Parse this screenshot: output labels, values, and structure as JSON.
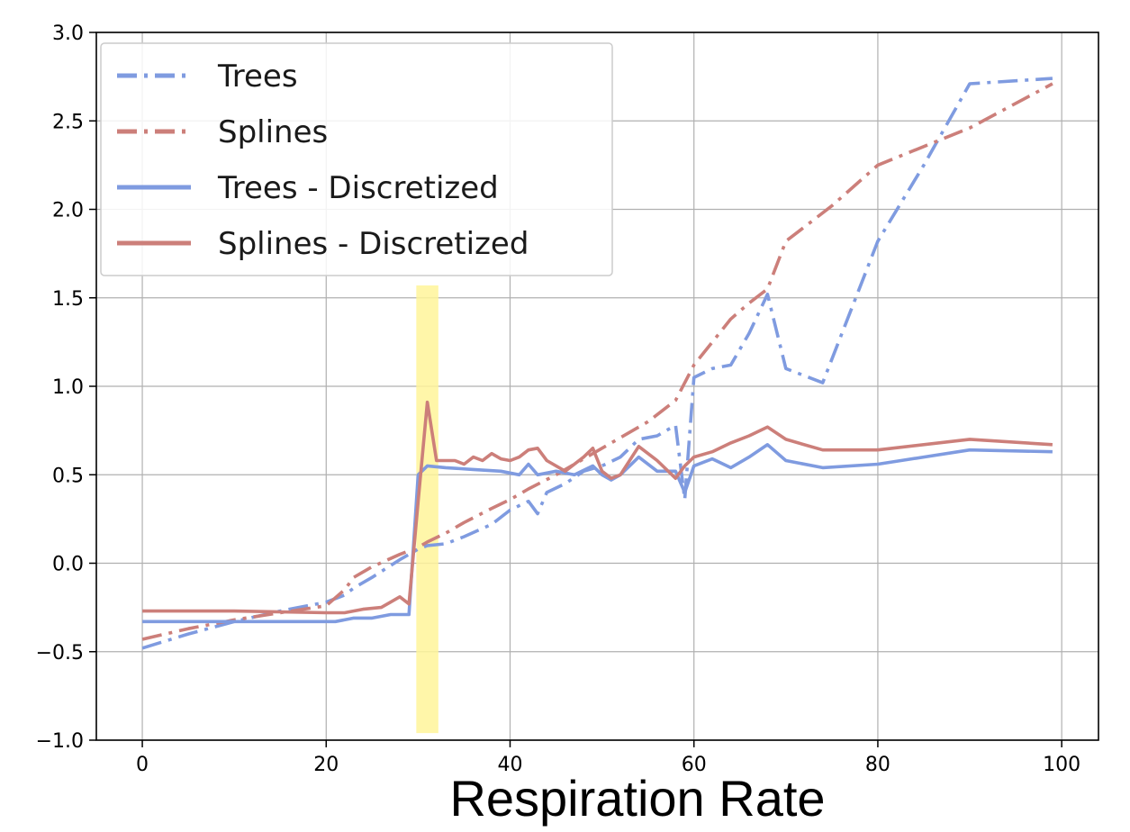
{
  "chart_data": {
    "type": "line",
    "title": "",
    "xlabel": "Respiration Rate",
    "ylabel": "",
    "xlim": [
      -5,
      104
    ],
    "ylim": [
      -1.0,
      3.0
    ],
    "xticks": [
      0,
      20,
      40,
      60,
      80,
      100
    ],
    "yticks": [
      -1.0,
      -0.5,
      0.0,
      0.5,
      1.0,
      1.5,
      2.0,
      2.5,
      3.0
    ],
    "xtick_labels": [
      "0",
      "20",
      "40",
      "60",
      "80",
      "100"
    ],
    "ytick_labels": [
      "−1.0",
      "−0.5",
      "0.0",
      "0.5",
      "1.0",
      "1.5",
      "2.0",
      "2.5",
      "3.0"
    ],
    "grid": true,
    "legend_position": "top-left",
    "highlight_band": {
      "x_start": 29.8,
      "x_end": 32.2,
      "y_start": -0.96,
      "y_end": 1.57,
      "color": "#fff59a"
    },
    "series": [
      {
        "name": "Trees",
        "style": "dashdot",
        "color": "#7f9be0",
        "x": [
          0,
          5,
          10,
          15,
          20,
          22,
          23,
          25,
          28,
          30,
          31,
          33,
          35,
          38,
          40,
          42,
          43,
          44,
          46,
          48,
          50,
          52,
          54,
          56,
          58,
          59,
          60,
          62,
          64,
          66,
          68,
          70,
          74,
          80,
          85,
          90,
          99
        ],
        "y": [
          -0.48,
          -0.4,
          -0.33,
          -0.27,
          -0.22,
          -0.18,
          -0.14,
          -0.08,
          0.02,
          0.08,
          0.1,
          0.11,
          0.15,
          0.22,
          0.3,
          0.35,
          0.28,
          0.4,
          0.45,
          0.52,
          0.55,
          0.6,
          0.7,
          0.72,
          0.78,
          0.36,
          1.05,
          1.1,
          1.12,
          1.3,
          1.52,
          1.1,
          1.02,
          1.82,
          2.25,
          2.71,
          2.74
        ]
      },
      {
        "name": "Splines",
        "style": "dashdot",
        "color": "#cc7f7a",
        "x": [
          0,
          5,
          10,
          15,
          20,
          22,
          23,
          25,
          28,
          30,
          31,
          33,
          35,
          38,
          40,
          42,
          45,
          48,
          50,
          52,
          55,
          58,
          60,
          62,
          64,
          66,
          68,
          70,
          75,
          80,
          90,
          99
        ],
        "y": [
          -0.43,
          -0.37,
          -0.32,
          -0.28,
          -0.24,
          -0.15,
          -0.08,
          -0.02,
          0.05,
          0.09,
          0.12,
          0.17,
          0.23,
          0.31,
          0.36,
          0.42,
          0.5,
          0.59,
          0.65,
          0.71,
          0.8,
          0.92,
          1.12,
          1.25,
          1.38,
          1.47,
          1.55,
          1.82,
          2.02,
          2.25,
          2.46,
          2.71
        ]
      },
      {
        "name": "Trees - Discretized",
        "style": "solid",
        "color": "#7f9be0",
        "x": [
          0,
          10,
          21,
          23,
          25,
          27,
          29,
          30,
          31,
          33,
          36,
          39,
          41,
          42,
          43,
          45,
          47,
          49,
          50,
          51,
          52,
          54,
          56,
          58,
          59,
          60,
          62,
          64,
          66,
          68,
          70,
          74,
          80,
          90,
          99
        ],
        "y": [
          -0.33,
          -0.33,
          -0.33,
          -0.31,
          -0.31,
          -0.29,
          -0.29,
          0.5,
          0.55,
          0.54,
          0.53,
          0.52,
          0.5,
          0.56,
          0.5,
          0.52,
          0.5,
          0.55,
          0.5,
          0.47,
          0.5,
          0.6,
          0.52,
          0.52,
          0.4,
          0.55,
          0.59,
          0.54,
          0.6,
          0.67,
          0.58,
          0.54,
          0.56,
          0.64,
          0.63
        ]
      },
      {
        "name": "Splines - Discretized",
        "style": "solid",
        "color": "#cc7f7a",
        "x": [
          0,
          10,
          20,
          22,
          24,
          26,
          27,
          28,
          29,
          30,
          31,
          32,
          34,
          35,
          36,
          37,
          38,
          39,
          40,
          41,
          42,
          43,
          44,
          46,
          48,
          49,
          50,
          51,
          52,
          54,
          56,
          58,
          59,
          60,
          62,
          64,
          66,
          68,
          70,
          74,
          80,
          90,
          99
        ],
        "y": [
          -0.27,
          -0.27,
          -0.28,
          -0.28,
          -0.26,
          -0.25,
          -0.22,
          -0.19,
          -0.23,
          0.35,
          0.91,
          0.58,
          0.58,
          0.56,
          0.6,
          0.58,
          0.62,
          0.59,
          0.58,
          0.6,
          0.64,
          0.65,
          0.58,
          0.52,
          0.6,
          0.65,
          0.52,
          0.48,
          0.5,
          0.66,
          0.58,
          0.48,
          0.55,
          0.6,
          0.63,
          0.68,
          0.72,
          0.77,
          0.7,
          0.64,
          0.64,
          0.7,
          0.67
        ]
      }
    ]
  }
}
